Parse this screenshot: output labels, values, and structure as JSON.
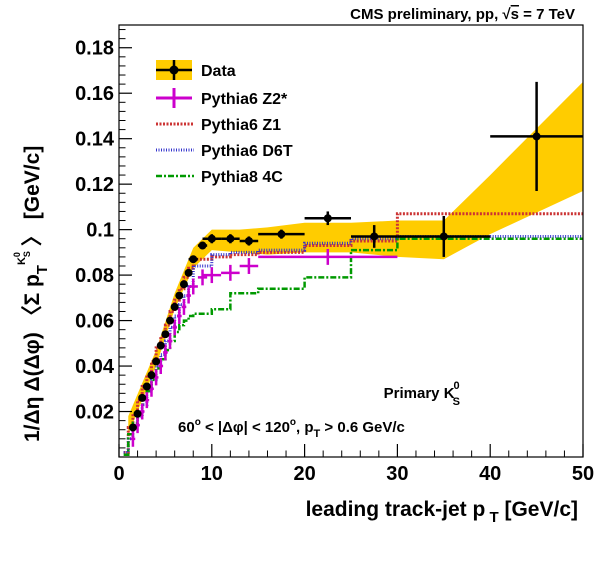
{
  "chart_data": {
    "type": "line",
    "title": "CMS preliminary, pp, √s = 7 TeV",
    "xlabel": "leading track-jet p_T [GeV/c]",
    "ylabel": "1/Δη Δ(Δφ) ⟨Σ p_T^K0s⟩ [GeV/c]",
    "xlim": [
      0,
      50
    ],
    "ylim": [
      0,
      0.19
    ],
    "x_ticks": [
      0,
      10,
      20,
      30,
      40,
      50
    ],
    "y_ticks": [
      0.02,
      0.04,
      0.06,
      0.08,
      0.1,
      0.12,
      0.14,
      0.16,
      0.18
    ],
    "x_tick_labels": [
      "0",
      "10",
      "20",
      "30",
      "40",
      "50"
    ],
    "y_tick_labels": [
      "0.02",
      "0.04",
      "0.06",
      "0.08",
      "0.1",
      "0.12",
      "0.14",
      "0.16",
      "0.18"
    ],
    "annotations": [
      "Primary K",
      "0",
      "S",
      "60",
      "o",
      " < |Δφ| < 120",
      "o",
      ", p",
      "T",
      " > 0.6 GeV/c"
    ],
    "title_parts": {
      "prefix": "CMS preliminary, pp, ",
      "sqrt": "√",
      "s": "s",
      "suffix": " = 7 TeV"
    },
    "legend": [
      {
        "label": "Data",
        "style": "data"
      },
      {
        "label": "Pythia6 Z2*",
        "style": "z2"
      },
      {
        "label": "Pythia6 Z1",
        "style": "z1"
      },
      {
        "label": "Pythia6 D6T",
        "style": "d6t"
      },
      {
        "label": "Pythia8 4C",
        "style": "p8"
      }
    ],
    "colors": {
      "data": "#000000",
      "band": "#ffcc00",
      "z2": "#cc00cc",
      "z1": "#cc3333",
      "d6t": "#3333cc",
      "p8": "#009900"
    },
    "data": {
      "x": [
        1.5,
        2,
        2.5,
        3,
        3.5,
        4,
        4.5,
        5,
        5.5,
        6,
        6.5,
        7,
        7.5,
        8,
        9,
        10,
        12,
        14,
        17.5,
        22.5,
        27.5,
        35,
        45
      ],
      "xerr": [
        0.25,
        0.25,
        0.25,
        0.25,
        0.25,
        0.25,
        0.25,
        0.25,
        0.25,
        0.25,
        0.25,
        0.25,
        0.25,
        0.5,
        0.5,
        1,
        1,
        1,
        2.5,
        2.5,
        2.5,
        5,
        5
      ],
      "y": [
        0.013,
        0.019,
        0.026,
        0.031,
        0.036,
        0.042,
        0.049,
        0.054,
        0.06,
        0.066,
        0.071,
        0.076,
        0.081,
        0.087,
        0.093,
        0.096,
        0.096,
        0.095,
        0.098,
        0.105,
        0.097,
        0.097,
        0.141
      ],
      "yerr": [
        0.001,
        0.001,
        0.001,
        0.001,
        0.001,
        0.001,
        0.001,
        0.001,
        0.001,
        0.001,
        0.001,
        0.001,
        0.001,
        0.0015,
        0.0015,
        0.002,
        0.002,
        0.002,
        0.002,
        0.003,
        0.005,
        0.009,
        0.024
      ],
      "band_x": [
        1,
        4,
        6,
        8,
        10,
        13,
        16,
        20,
        25,
        30,
        35,
        40,
        50
      ],
      "band_low": [
        0.01,
        0.04,
        0.065,
        0.083,
        0.091,
        0.09,
        0.089,
        0.09,
        0.09,
        0.088,
        0.087,
        0.098,
        0.117
      ],
      "band_high": [
        0.018,
        0.047,
        0.072,
        0.092,
        0.1,
        0.1,
        0.101,
        0.103,
        0.103,
        0.104,
        0.104,
        0.124,
        0.165
      ]
    },
    "series": [
      {
        "name": "Pythia6 Z2*",
        "style": "z2",
        "points": {
          "x": [
            1.5,
            2,
            2.5,
            3,
            3.5,
            4,
            4.5,
            5,
            5.5,
            6,
            6.5,
            7,
            7.5,
            8,
            9,
            10,
            12,
            14,
            22.5
          ],
          "xerr": [
            0.25,
            0.25,
            0.25,
            0.25,
            0.25,
            0.25,
            0.25,
            0.25,
            0.25,
            0.25,
            0.25,
            0.25,
            0.25,
            0.5,
            0.5,
            1,
            1,
            1,
            7.5
          ],
          "y": [
            0.008,
            0.014,
            0.02,
            0.025,
            0.03,
            0.035,
            0.04,
            0.046,
            0.051,
            0.057,
            0.062,
            0.066,
            0.071,
            0.075,
            0.079,
            0.08,
            0.081,
            0.084,
            0.088
          ],
          "yerr": [
            0.001,
            0.001,
            0.001,
            0.001,
            0.001,
            0.001,
            0.001,
            0.001,
            0.001,
            0.001,
            0.001,
            0.0015,
            0.0015,
            0.002,
            0.0025,
            0.003,
            0.003,
            0.003,
            0.003
          ]
        }
      },
      {
        "name": "Pythia6 Z1",
        "style": "z1",
        "steps": {
          "edges": [
            0.5,
            1,
            1.5,
            2,
            2.5,
            3,
            3.5,
            4,
            4.5,
            5,
            5.5,
            6,
            6.5,
            7,
            7.5,
            8,
            10,
            12,
            15,
            20,
            25,
            30,
            40,
            50
          ],
          "values": [
            0.002,
            0.013,
            0.019,
            0.025,
            0.031,
            0.036,
            0.042,
            0.048,
            0.053,
            0.058,
            0.064,
            0.069,
            0.074,
            0.079,
            0.083,
            0.087,
            0.088,
            0.089,
            0.09,
            0.093,
            0.095,
            0.107,
            0.107
          ]
        }
      },
      {
        "name": "Pythia6 D6T",
        "style": "d6t",
        "steps": {
          "edges": [
            0.5,
            1,
            1.5,
            2,
            2.5,
            3,
            3.5,
            4,
            4.5,
            5,
            5.5,
            6,
            6.5,
            7,
            7.5,
            8,
            10,
            12,
            15,
            20,
            25,
            30,
            40,
            50
          ],
          "values": [
            0.002,
            0.008,
            0.013,
            0.018,
            0.023,
            0.029,
            0.034,
            0.04,
            0.045,
            0.051,
            0.057,
            0.062,
            0.067,
            0.071,
            0.075,
            0.084,
            0.089,
            0.09,
            0.091,
            0.094,
            0.096,
            0.097,
            0.097
          ]
        }
      },
      {
        "name": "Pythia8 4C",
        "style": "p8",
        "steps": {
          "edges": [
            0.5,
            1,
            1.5,
            2,
            2.5,
            3,
            3.5,
            4,
            4.5,
            5,
            5.5,
            6,
            6.5,
            7,
            7.5,
            8,
            10,
            12,
            15,
            20,
            25,
            30,
            40,
            50
          ],
          "values": [
            0.001,
            0.01,
            0.015,
            0.02,
            0.025,
            0.029,
            0.034,
            0.039,
            0.043,
            0.047,
            0.051,
            0.055,
            0.058,
            0.06,
            0.062,
            0.063,
            0.065,
            0.072,
            0.074,
            0.079,
            0.091,
            0.096,
            0.096
          ]
        }
      }
    ]
  }
}
